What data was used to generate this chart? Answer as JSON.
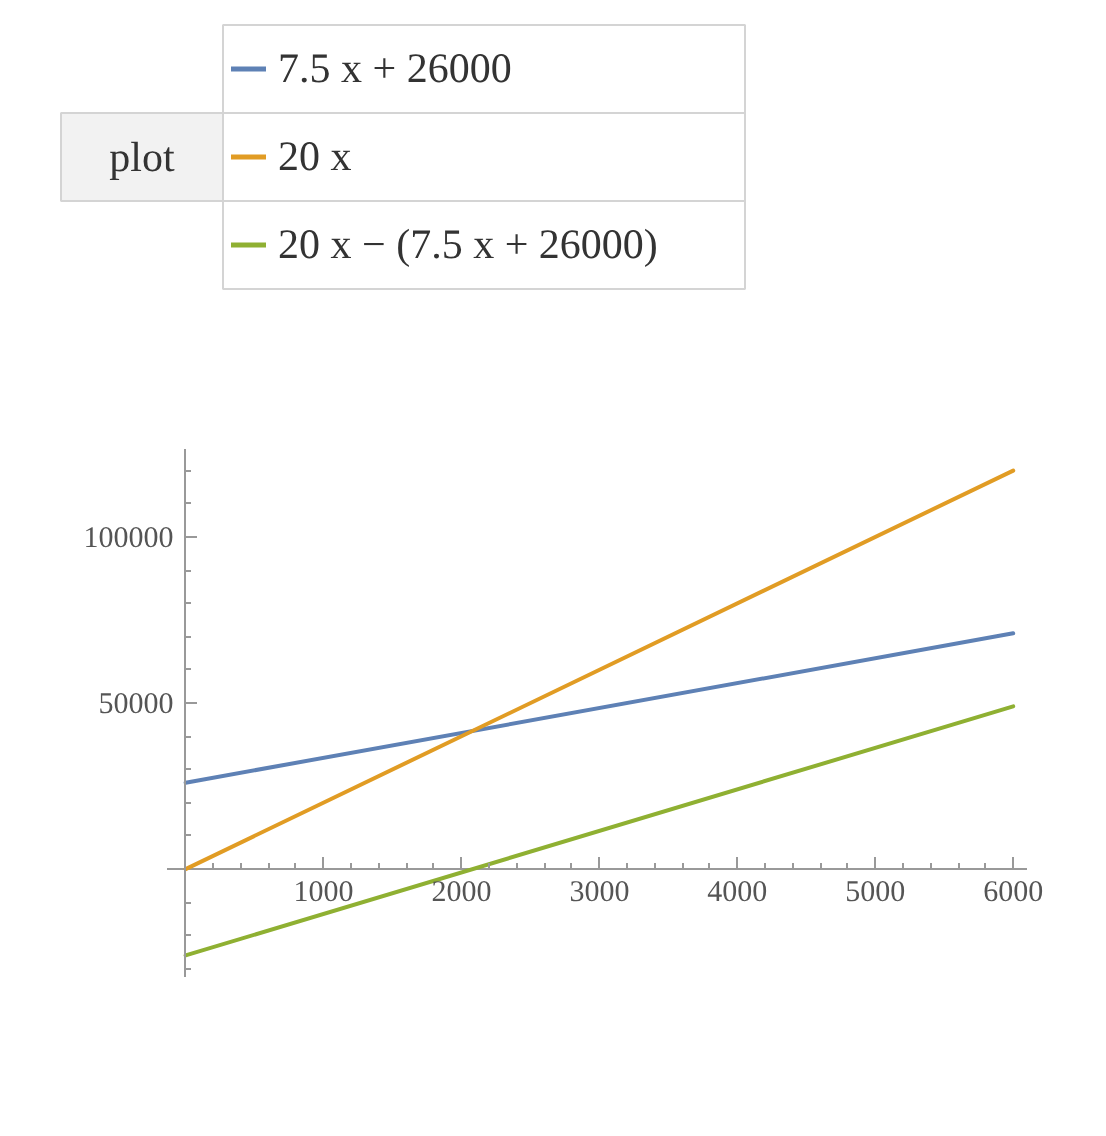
{
  "chart_data": {
    "type": "line",
    "legend_title": "plot",
    "legend": "top",
    "x": [
      0,
      6000
    ],
    "series": [
      {
        "name": "7.5 x + 26000",
        "color": "#5e81b5",
        "values": [
          26000,
          71000
        ]
      },
      {
        "name": "20 x",
        "color": "#e19c24",
        "values": [
          0,
          120000
        ]
      },
      {
        "name": "20 x − (7.5 x + 26000)",
        "color": "#8fb032",
        "values": [
          -26000,
          49000
        ]
      }
    ],
    "xlim": [
      -135,
      6100
    ],
    "ylim": [
      -32500,
      126500
    ],
    "xticks": [
      {
        "value": 200,
        "label": null
      },
      {
        "value": 400,
        "label": null
      },
      {
        "value": 600,
        "label": null
      },
      {
        "value": 800,
        "label": null
      },
      1000,
      {
        "value": 1200,
        "label": null
      },
      {
        "value": 1400,
        "label": null
      },
      {
        "value": 1600,
        "label": null
      },
      {
        "value": 1800,
        "label": null
      },
      2000,
      {
        "value": 2200,
        "label": null
      },
      {
        "value": 2400,
        "label": null
      },
      {
        "value": 2600,
        "label": null
      },
      {
        "value": 2800,
        "label": null
      },
      3000,
      {
        "value": 3200,
        "label": null
      },
      {
        "value": 3400,
        "label": null
      },
      {
        "value": 3600,
        "label": null
      },
      {
        "value": 3800,
        "label": null
      },
      4000,
      {
        "value": 4200,
        "label": null
      },
      {
        "value": 4400,
        "label": null
      },
      {
        "value": 4600,
        "label": null
      },
      {
        "value": 4800,
        "label": null
      },
      5000,
      {
        "value": 5200,
        "label": null
      },
      {
        "value": 5400,
        "label": null
      },
      {
        "value": 5600,
        "label": null
      },
      {
        "value": 5800,
        "label": null
      },
      6000
    ],
    "yticks": [
      {
        "value": -30000,
        "label": null
      },
      {
        "value": -20000,
        "label": null
      },
      {
        "value": -10000,
        "label": null
      },
      {
        "value": 10000,
        "label": null
      },
      {
        "value": 20000,
        "label": null
      },
      {
        "value": 30000,
        "label": null
      },
      {
        "value": 40000,
        "label": null
      },
      50000,
      {
        "value": 60000,
        "label": null
      },
      {
        "value": 70000,
        "label": null
      },
      {
        "value": 80000,
        "label": null
      },
      {
        "value": 90000,
        "label": null
      },
      100000,
      {
        "value": 110000,
        "label": null
      },
      {
        "value": 120000,
        "label": null
      }
    ]
  }
}
